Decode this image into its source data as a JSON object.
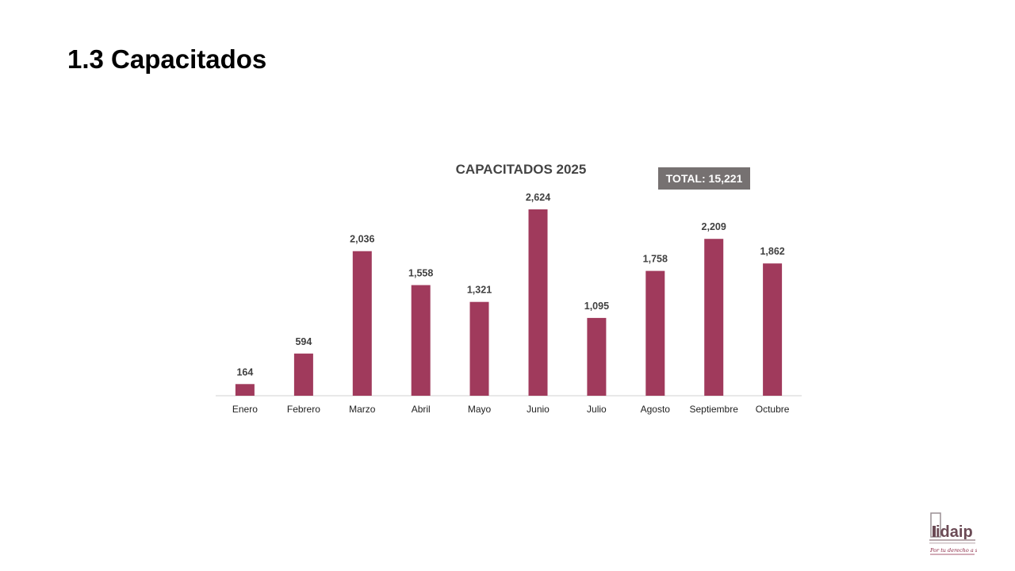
{
  "page": {
    "title": "1.3 Capacitados"
  },
  "chart_data": {
    "type": "bar",
    "title": "CAPACITADOS 2025",
    "total_label": "TOTAL: 15,221",
    "categories": [
      "Enero",
      "Febrero",
      "Marzo",
      "Abril",
      "Mayo",
      "Junio",
      "Julio",
      "Agosto",
      "Septiembre",
      "Octubre"
    ],
    "values": [
      164,
      594,
      2036,
      1558,
      1321,
      2624,
      1095,
      1758,
      2209,
      1862
    ],
    "value_labels": [
      "164",
      "594",
      "2,036",
      "1,558",
      "1,321",
      "2,624",
      "1,095",
      "1,758",
      "2,209",
      "1,862"
    ],
    "ylim": [
      0,
      2624
    ],
    "grid": false,
    "legend": "none",
    "colors": {
      "bar": "#a03a5c",
      "total_badge": "#767171",
      "axis": "#d0d0d0"
    }
  },
  "logo": {
    "word": "idaip",
    "slogan": "Por tu derecho a saber",
    "icon": "idaip-logo-icon"
  }
}
